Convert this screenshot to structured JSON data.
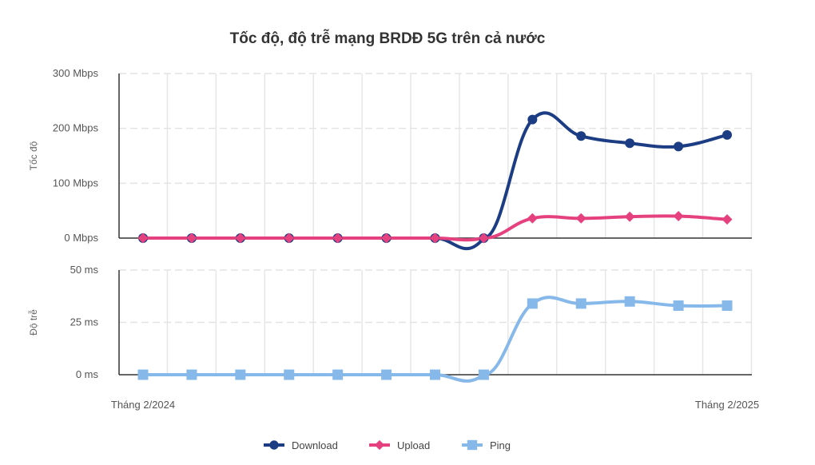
{
  "chart_data": {
    "type": "line",
    "title": "Tốc độ, độ trễ mạng BRDĐ 5G trên cả nước",
    "x_start_label": "Tháng 2/2024",
    "x_end_label": "Tháng 2/2025",
    "points_count": 13,
    "panels": [
      {
        "id": "speed",
        "ylabel": "Tốc độ",
        "ylim": [
          0,
          300
        ],
        "yticks": [
          0,
          100,
          200,
          300
        ],
        "ytick_labels": [
          "0 Mbps",
          "100 Mbps",
          "200 Mbps",
          "300 Mbps"
        ],
        "series": [
          {
            "name": "Download",
            "color": "#1c3d84",
            "marker": "circle",
            "values": [
              0,
              0,
              0,
              0,
              0,
              0,
              0,
              0,
              216,
              186,
              173,
              167,
              188
            ]
          },
          {
            "name": "Upload",
            "color": "#e5417f",
            "marker": "diamond",
            "values": [
              0,
              0,
              0,
              0,
              0,
              0,
              0,
              0,
              36,
              36,
              39,
              40,
              34
            ]
          }
        ]
      },
      {
        "id": "latency",
        "ylabel": "Độ trễ",
        "ylim": [
          0,
          50
        ],
        "yticks": [
          0,
          25,
          50
        ],
        "ytick_labels": [
          "0 ms",
          "25 ms",
          "50 ms"
        ],
        "series": [
          {
            "name": "Ping",
            "color": "#86b8ea",
            "marker": "square",
            "values": [
              0,
              0,
              0,
              0,
              0,
              0,
              0,
              0,
              34,
              34,
              35,
              33,
              33
            ]
          }
        ]
      }
    ],
    "legend": [
      {
        "name": "Download",
        "color": "#1c3d84",
        "marker": "circle"
      },
      {
        "name": "Upload",
        "color": "#e5417f",
        "marker": "diamond"
      },
      {
        "name": "Ping",
        "color": "#86b8ea",
        "marker": "square"
      }
    ],
    "legend_position": "bottom-center"
  }
}
